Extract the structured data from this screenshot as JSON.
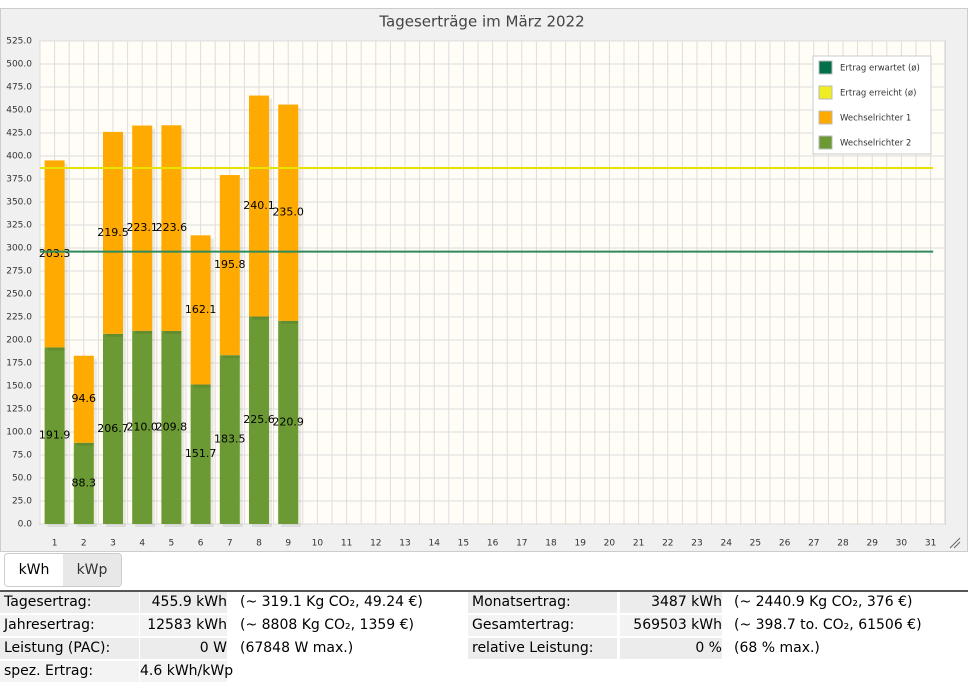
{
  "chart_data": {
    "type": "stacked_bar",
    "title": "Tageserträge im März 2022",
    "categories": [
      "1",
      "2",
      "3",
      "4",
      "5",
      "6",
      "7",
      "8",
      "9",
      "10",
      "11",
      "12",
      "13",
      "14",
      "15",
      "16",
      "17",
      "18",
      "19",
      "20",
      "21",
      "22",
      "23",
      "24",
      "25",
      "26",
      "27",
      "28",
      "29",
      "30",
      "31"
    ],
    "series": [
      {
        "name": "Wechselrichter 2",
        "color": "#6b9a34",
        "values": [
          191.9,
          88.3,
          206.7,
          210.0,
          209.8,
          151.7,
          183.5,
          225.6,
          220.9,
          null,
          null,
          null,
          null,
          null,
          null,
          null,
          null,
          null,
          null,
          null,
          null,
          null,
          null,
          null,
          null,
          null,
          null,
          null,
          null,
          null,
          null
        ],
        "value_labels": [
          "191.9",
          "88.3",
          "206.7",
          "210.0",
          "209.8",
          "151.7",
          "183.5",
          "225.6",
          "220.9",
          null,
          null,
          null,
          null,
          null,
          null,
          null,
          null,
          null,
          null,
          null,
          null,
          null,
          null,
          null,
          null,
          null,
          null,
          null,
          null,
          null,
          null
        ]
      },
      {
        "name": "Wechselrichter 1",
        "color": "#ffaa00",
        "values": [
          203.3,
          94.6,
          219.5,
          223.1,
          223.6,
          162.1,
          195.8,
          240.1,
          235.0,
          null,
          null,
          null,
          null,
          null,
          null,
          null,
          null,
          null,
          null,
          null,
          null,
          null,
          null,
          null,
          null,
          null,
          null,
          null,
          null,
          null,
          null
        ],
        "value_labels": [
          "203.3",
          "94.6",
          "219.5",
          "223.1",
          "223.6",
          "162.1",
          "195.8",
          "240.1",
          "235.0",
          null,
          null,
          null,
          null,
          null,
          null,
          null,
          null,
          null,
          null,
          null,
          null,
          null,
          null,
          null,
          null,
          null,
          null,
          null,
          null,
          null,
          null
        ]
      }
    ],
    "reference_lines": [
      {
        "name": "Ertrag erwartet (ø)",
        "color": "#2e8a5e",
        "swatch": "#00704a",
        "value": 296
      },
      {
        "name": "Ertrag erreicht (ø)",
        "color": "#e8e200",
        "swatch": "#eeee22",
        "value": 387
      }
    ],
    "ylim": [
      0,
      525
    ],
    "yticks": [
      {
        "value": 0,
        "label": "0.0"
      },
      {
        "value": 25,
        "label": "25.0"
      },
      {
        "value": 50,
        "label": "50.0"
      },
      {
        "value": 75,
        "label": "75.0"
      },
      {
        "value": 100,
        "label": "100.0"
      },
      {
        "value": 125,
        "label": "125.0"
      },
      {
        "value": 150,
        "label": "150.0"
      },
      {
        "value": 175,
        "label": "175.0"
      },
      {
        "value": 200,
        "label": "200.0"
      },
      {
        "value": 225,
        "label": "225.0"
      },
      {
        "value": 250,
        "label": "250.0"
      },
      {
        "value": 275,
        "label": "275.0"
      },
      {
        "value": 300,
        "label": "300.0"
      },
      {
        "value": 325,
        "label": "325.0"
      },
      {
        "value": 350,
        "label": "350.0"
      },
      {
        "value": 375,
        "label": "375.0"
      },
      {
        "value": 400,
        "label": "400.0"
      },
      {
        "value": 425,
        "label": "425.0"
      },
      {
        "value": 450,
        "label": "450.0"
      },
      {
        "value": 475,
        "label": "475.0"
      },
      {
        "value": 500,
        "label": "500.0"
      },
      {
        "value": 525,
        "label": "525.0"
      }
    ],
    "grid": true,
    "legend": "top-right"
  },
  "tabs": [
    "kWh",
    "kWp"
  ],
  "stats": {
    "rows": [
      [
        "Tagesertrag:",
        "455.9 kWh",
        "(~ 319.1 Kg CO₂, 49.24 €)",
        "Monatsertrag:",
        "3487 kWh",
        "(~ 2440.9 Kg CO₂, 376 €)"
      ],
      [
        "Jahresertrag:",
        "12583 kWh",
        "(~ 8808 Kg CO₂, 1359 €)",
        "Gesamtertrag:",
        "569503 kWh",
        "(~ 398.7 to. CO₂, 61506 €)"
      ],
      [
        "Leistung (PAC):",
        "0 W",
        "(67848 W max.)",
        "relative Leistung:",
        "0 %",
        "(68 % max.)"
      ],
      [
        "spez. Ertrag:",
        "4.6 kWh/kWp"
      ]
    ]
  }
}
